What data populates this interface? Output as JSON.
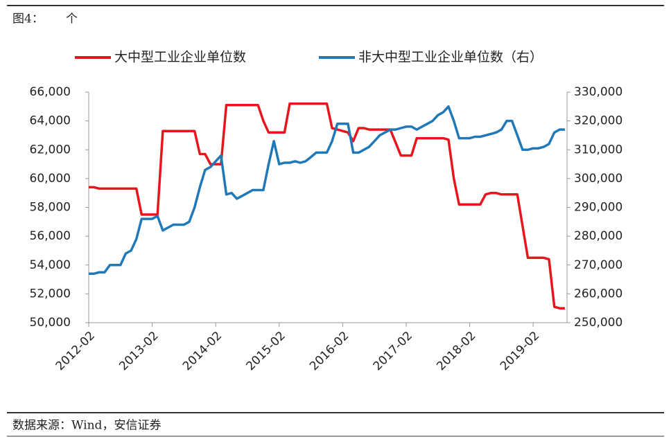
{
  "chart_data": {
    "type": "line",
    "title": "图4：",
    "unit": "个",
    "source": "数据来源：Wind，安信证券",
    "x": [
      "2012-02",
      "2012-03",
      "2012-04",
      "2012-05",
      "2012-06",
      "2012-07",
      "2012-08",
      "2012-09",
      "2012-10",
      "2012-11",
      "2012-12",
      "2013-01",
      "2013-02",
      "2013-03",
      "2013-04",
      "2013-05",
      "2013-06",
      "2013-07",
      "2013-08",
      "2013-09",
      "2013-10",
      "2013-11",
      "2013-12",
      "2014-01",
      "2014-02",
      "2014-03",
      "2014-04",
      "2014-05",
      "2014-06",
      "2014-07",
      "2014-08",
      "2014-09",
      "2014-10",
      "2014-11",
      "2014-12",
      "2015-01",
      "2015-02",
      "2015-03",
      "2015-04",
      "2015-05",
      "2015-06",
      "2015-07",
      "2015-08",
      "2015-09",
      "2015-10",
      "2015-11",
      "2015-12",
      "2016-01",
      "2016-02",
      "2016-03",
      "2016-04",
      "2016-05",
      "2016-06",
      "2016-07",
      "2016-08",
      "2016-09",
      "2016-10",
      "2016-11",
      "2016-12",
      "2017-01",
      "2017-02",
      "2017-03",
      "2017-04",
      "2017-05",
      "2017-06",
      "2017-07",
      "2017-08",
      "2017-09",
      "2017-10",
      "2017-11",
      "2017-12",
      "2018-01",
      "2018-02",
      "2018-03",
      "2018-04",
      "2018-05",
      "2018-06",
      "2018-07",
      "2018-08",
      "2018-09",
      "2018-10",
      "2018-11",
      "2018-12",
      "2019-01",
      "2019-02",
      "2019-03",
      "2019-04",
      "2019-05",
      "2019-06",
      "2019-07",
      "2019-08"
    ],
    "series": [
      {
        "name": "大中型工业企业单位数",
        "color": "#e8161c",
        "axis": "y",
        "values": [
          59400,
          59400,
          59300,
          59300,
          59300,
          59300,
          59300,
          59300,
          59300,
          59300,
          57500,
          57500,
          57500,
          57500,
          63300,
          63300,
          63300,
          63300,
          63300,
          63300,
          63300,
          61700,
          61700,
          61000,
          61000,
          61000,
          65100,
          65100,
          65100,
          65100,
          65100,
          65100,
          65100,
          64000,
          63200,
          63200,
          63200,
          63200,
          65200,
          65200,
          65200,
          65200,
          65200,
          65200,
          65200,
          65200,
          63500,
          63400,
          63300,
          63200,
          62600,
          63500,
          63500,
          63400,
          63400,
          63400,
          63400,
          63400,
          62500,
          61600,
          61600,
          61600,
          62800,
          62800,
          62800,
          62800,
          62800,
          62800,
          62700,
          60000,
          58200,
          58200,
          58200,
          58200,
          58200,
          58900,
          59000,
          59000,
          58900,
          58900,
          58900,
          58900,
          56700,
          54500,
          54500,
          54500,
          54500,
          54400,
          51100,
          51000,
          51000
        ]
      },
      {
        "name": "非大中型工业企业单位数（右）",
        "color": "#1f78b8",
        "axis": "y2",
        "values": [
          267000,
          267000,
          267500,
          267500,
          270000,
          270000,
          270000,
          274000,
          275000,
          279000,
          286000,
          286000,
          286000,
          287000,
          282000,
          283000,
          284000,
          284000,
          284000,
          285000,
          290000,
          297000,
          303000,
          304000,
          306000,
          308000,
          294500,
          295000,
          293000,
          294000,
          295000,
          296000,
          296000,
          296000,
          305000,
          313000,
          305000,
          305500,
          305500,
          306000,
          305500,
          306000,
          307500,
          309000,
          309000,
          309000,
          313000,
          319000,
          319000,
          319000,
          309000,
          309000,
          310000,
          311000,
          313000,
          315000,
          316000,
          317000,
          317000,
          317500,
          318000,
          318000,
          317000,
          318000,
          319000,
          320000,
          322000,
          323000,
          325000,
          320000,
          314000,
          314000,
          314000,
          314500,
          314500,
          315000,
          315500,
          316000,
          317000,
          320000,
          320000,
          315000,
          310000,
          310000,
          310500,
          310500,
          311000,
          312000,
          316000,
          317000,
          317000
        ]
      }
    ],
    "xticks": [
      "2012-02",
      "2013-02",
      "2014-02",
      "2015-02",
      "2016-02",
      "2017-02",
      "2018-02",
      "2019-02"
    ],
    "ylim": [
      50000,
      66000
    ],
    "yticks": [
      {
        "value": 50000,
        "label": "50,000"
      },
      {
        "value": 52000,
        "label": "52,000"
      },
      {
        "value": 54000,
        "label": "54,000"
      },
      {
        "value": 56000,
        "label": "56,000"
      },
      {
        "value": 58000,
        "label": "58,000"
      },
      {
        "value": 60000,
        "label": "60,000"
      },
      {
        "value": 62000,
        "label": "62,000"
      },
      {
        "value": 64000,
        "label": "64,000"
      },
      {
        "value": 66000,
        "label": "66,000"
      }
    ],
    "y2lim": [
      250000,
      330000
    ],
    "y2ticks": [
      {
        "value": 250000,
        "label": "250,000"
      },
      {
        "value": 260000,
        "label": "260,000"
      },
      {
        "value": 270000,
        "label": "270,000"
      },
      {
        "value": 280000,
        "label": "280,000"
      },
      {
        "value": 290000,
        "label": "290,000"
      },
      {
        "value": 300000,
        "label": "300,000"
      },
      {
        "value": 310000,
        "label": "310,000"
      },
      {
        "value": 320000,
        "label": "320,000"
      },
      {
        "value": 330000,
        "label": "330,000"
      }
    ],
    "grid": false,
    "legend": "top"
  }
}
